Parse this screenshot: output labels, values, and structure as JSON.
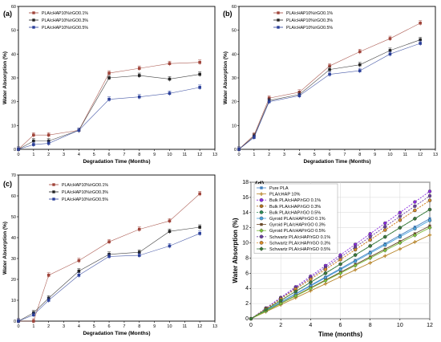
{
  "chart_data": [
    {
      "panel": "(a)",
      "type": "line",
      "title": "",
      "xlabel": "Degradation Time (Months)",
      "ylabel": "Water Absorption (%)",
      "xlim": [
        0,
        13
      ],
      "ylim": [
        0,
        60
      ],
      "xticks": [
        0,
        1,
        2,
        3,
        4,
        5,
        6,
        7,
        8,
        9,
        10,
        11,
        12,
        13
      ],
      "yticks": [
        0,
        10,
        20,
        30,
        40,
        50,
        60
      ],
      "legend_position": "top-left",
      "x": [
        0,
        1,
        2,
        4,
        6,
        8,
        10,
        12
      ],
      "series": [
        {
          "name": "PLA/cHAP10%/rGO0.1%",
          "color": "#a0443a",
          "marker": "square",
          "values": [
            0,
            6,
            6,
            8,
            32,
            34,
            36,
            36.5
          ]
        },
        {
          "name": "PLA/cHAP10%/rGO0.3%",
          "color": "#222222",
          "marker": "square",
          "values": [
            0,
            3.5,
            3.5,
            8,
            30,
            31,
            29.5,
            31.5
          ]
        },
        {
          "name": "PLA/cHAP10%/rGO0.5%",
          "color": "#2a3f9a",
          "marker": "square",
          "values": [
            0,
            2,
            2.5,
            8,
            21,
            22,
            23.5,
            26
          ]
        }
      ]
    },
    {
      "panel": "(b)",
      "type": "line",
      "title": "",
      "xlabel": "Degradation Time (Months)",
      "ylabel": "Water Absorption (%)",
      "xlim": [
        0,
        13
      ],
      "ylim": [
        0,
        60
      ],
      "xticks": [
        0,
        1,
        2,
        3,
        4,
        5,
        6,
        7,
        8,
        9,
        10,
        11,
        12,
        13
      ],
      "yticks": [
        0,
        10,
        20,
        30,
        40,
        50,
        60
      ],
      "legend_position": "top-center",
      "x": [
        0,
        1,
        2,
        4,
        6,
        8,
        10,
        12
      ],
      "series": [
        {
          "name": "PLA/cHAP10%/rGO0.1%",
          "color": "#a0443a",
          "marker": "square",
          "values": [
            0,
            6,
            21.5,
            24,
            35,
            41,
            46.5,
            53
          ]
        },
        {
          "name": "PLA/cHAP10%/rGO0.3%",
          "color": "#222222",
          "marker": "square",
          "values": [
            0,
            5.5,
            20.5,
            23,
            33.5,
            35.5,
            41.5,
            46
          ]
        },
        {
          "name": "PLA/cHAP10%/rGO0.5%",
          "color": "#2a3f9a",
          "marker": "square",
          "values": [
            0,
            5,
            20,
            22.5,
            31.5,
            33,
            40,
            44.5
          ]
        }
      ]
    },
    {
      "panel": "(c)",
      "type": "line",
      "title": "",
      "xlabel": "Degradation Time (Months)",
      "ylabel": "Water Absorption (%)",
      "xlim": [
        0,
        13
      ],
      "ylim": [
        0,
        70
      ],
      "xticks": [
        0,
        1,
        2,
        3,
        4,
        5,
        6,
        7,
        8,
        9,
        10,
        11,
        12,
        13
      ],
      "yticks": [
        0,
        10,
        20,
        30,
        40,
        50,
        60,
        70
      ],
      "legend_position": "top-left",
      "x": [
        0,
        1,
        2,
        4,
        6,
        8,
        10,
        12
      ],
      "series": [
        {
          "name": "PLA/cHAP10%/rGO0.1%",
          "color": "#a0443a",
          "marker": "square",
          "values": [
            0,
            0,
            22,
            29,
            38,
            44,
            48,
            61
          ]
        },
        {
          "name": "PLA/cHAP10%/rGO0.3%",
          "color": "#222222",
          "marker": "square",
          "values": [
            0,
            4,
            11,
            24,
            32,
            33,
            43,
            45
          ]
        },
        {
          "name": "PLA/cHAP10%/rGO0.5%",
          "color": "#2a3f9a",
          "marker": "square",
          "values": [
            0,
            3,
            10,
            22,
            31,
            31.5,
            36,
            42
          ]
        }
      ]
    },
    {
      "panel": "(d)",
      "type": "line",
      "title": "",
      "xlabel": "Time (months)",
      "ylabel": "Water Absorption (%)",
      "xlim": [
        0,
        12
      ],
      "ylim": [
        0,
        18
      ],
      "xticks": [
        0,
        2,
        4,
        6,
        8,
        10,
        12
      ],
      "yticks": [
        0,
        2,
        4,
        6,
        8,
        10,
        12,
        14,
        16,
        18
      ],
      "grid": true,
      "legend_position": "top-left",
      "x": [
        0,
        1,
        2,
        3,
        4,
        5,
        6,
        7,
        8,
        9,
        10,
        11,
        12
      ],
      "series": [
        {
          "name": "Pure PLA",
          "color": "#3f7fbf",
          "marker": "square",
          "dashed": false,
          "slope": 1.1
        },
        {
          "name": "PLA/cHAP 10%",
          "color": "#b8862b",
          "marker": "plus",
          "dashed": false,
          "slope": 0.92
        },
        {
          "name": "Bulk PLA/cHAP/rGO 0.1%",
          "color": "#8b2be2",
          "marker": "circle",
          "dashed": true,
          "slope": 1.4
        },
        {
          "name": "Bulk PLA/cHAP/rGO 0.3%",
          "color": "#b07020",
          "marker": "circle",
          "dashed": true,
          "slope": 1.3
        },
        {
          "name": "Bulk PLA/cHAP/rGO 0.5%",
          "color": "#2e8b57",
          "marker": "circle",
          "dashed": true,
          "slope": 1.2
        },
        {
          "name": "Gyroid PLA/cHAP/rGO 0.1%",
          "color": "#4aa3df",
          "marker": "circle",
          "dashed": false,
          "slope": 1.08
        },
        {
          "name": "Gyroid PLA/cHAP/rGO 0.3%",
          "color": "#6a4a2a",
          "marker": "square",
          "dashed": false,
          "slope": 1.02
        },
        {
          "name": "Gyroid PLA/cHAP/rGO 0.5%",
          "color": "#7cbf3a",
          "marker": "diamond",
          "dashed": false,
          "slope": 1.0
        },
        {
          "name": "Schwartz PLA/cHAP/rGO 0.1%",
          "color": "#6a3fa0",
          "marker": "circle",
          "dashed": true,
          "slope": 1.35
        },
        {
          "name": "Schwartz PLA/cHAP/rGO 0.3%",
          "color": "#d98c2b",
          "marker": "circle",
          "dashed": true,
          "slope": 1.3
        },
        {
          "name": "Schwartz PLA/cHAP/rGO 0.5%",
          "color": "#3a7a3a",
          "marker": "diamond",
          "dashed": false,
          "slope": 1.2
        }
      ]
    }
  ]
}
